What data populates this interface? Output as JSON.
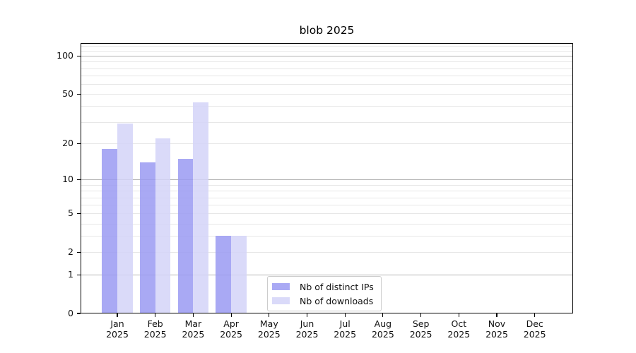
{
  "title": "blob 2025",
  "colors": {
    "ips": "#9a9af2",
    "downloads": "#d3d3f8",
    "grid_major": "#b3b3b3",
    "grid_minor": "#e7e7e7",
    "spine": "#000000",
    "text": "#111111",
    "legend_border": "#cccccc"
  },
  "y_axis": {
    "ticks": [
      {
        "label": "100",
        "value": 100
      },
      {
        "label": "50",
        "value": 50
      },
      {
        "label": "20",
        "value": 20
      },
      {
        "label": "10",
        "value": 10
      },
      {
        "label": "5",
        "value": 5
      },
      {
        "label": "2",
        "value": 2
      },
      {
        "label": "1",
        "value": 1
      },
      {
        "label": "0",
        "value": 0
      }
    ],
    "major_gridlines": [
      1,
      10,
      100
    ],
    "minor_gridlines": [
      2,
      3,
      4,
      5,
      6,
      7,
      8,
      9,
      20,
      30,
      40,
      50,
      60,
      70,
      80,
      90,
      110,
      120
    ]
  },
  "x_axis": {
    "labels": [
      {
        "month": "Jan",
        "year": "2025"
      },
      {
        "month": "Feb",
        "year": "2025"
      },
      {
        "month": "Mar",
        "year": "2025"
      },
      {
        "month": "Apr",
        "year": "2025"
      },
      {
        "month": "May",
        "year": "2025"
      },
      {
        "month": "Jun",
        "year": "2025"
      },
      {
        "month": "Jul",
        "year": "2025"
      },
      {
        "month": "Aug",
        "year": "2025"
      },
      {
        "month": "Sep",
        "year": "2025"
      },
      {
        "month": "Oct",
        "year": "2025"
      },
      {
        "month": "Nov",
        "year": "2025"
      },
      {
        "month": "Dec",
        "year": "2025"
      }
    ]
  },
  "legend": {
    "items": [
      {
        "label": "Nb of distinct IPs",
        "series": "ips"
      },
      {
        "label": "Nb of downloads",
        "series": "downloads"
      }
    ]
  },
  "chart_data": {
    "type": "bar",
    "title": "blob 2025",
    "categories": [
      "Jan 2025",
      "Feb 2025",
      "Mar 2025",
      "Apr 2025",
      "May 2025",
      "Jun 2025",
      "Jul 2025",
      "Aug 2025",
      "Sep 2025",
      "Oct 2025",
      "Nov 2025",
      "Dec 2025"
    ],
    "series": [
      {
        "name": "Nb of distinct IPs",
        "color": "#9a9af2",
        "values": [
          18,
          14,
          15,
          3,
          0,
          0,
          0,
          0,
          0,
          0,
          0,
          0
        ]
      },
      {
        "name": "Nb of downloads",
        "color": "#d3d3f8",
        "values": [
          29,
          22,
          43,
          3,
          0,
          0,
          0,
          0,
          0,
          0,
          0,
          0
        ]
      }
    ],
    "xlabel": "",
    "ylabel": "",
    "yscale": "log1p",
    "ylim": [
      0,
      126
    ],
    "yticks": [
      0,
      1,
      2,
      5,
      10,
      20,
      50,
      100
    ],
    "grid": true,
    "legend_position": "lower center inside"
  }
}
